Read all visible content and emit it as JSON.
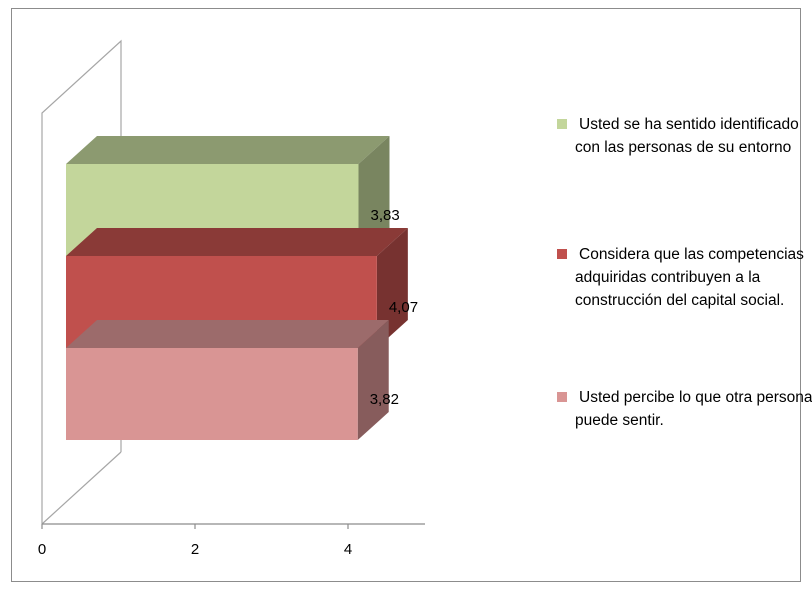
{
  "chart_data": {
    "type": "bar",
    "orientation": "horizontal",
    "style": "3d-stacked-clustered",
    "xlim": [
      0,
      5
    ],
    "x_ticks": [
      "0",
      "2",
      "4"
    ],
    "grid": false,
    "legend_position": "right",
    "series": [
      {
        "name": "Usted se ha sentido identificado con las personas de su entorno",
        "value": 3.83,
        "label": "3,83",
        "color": "#c3d69b"
      },
      {
        "name": "Considera que las competencias adquiridas contribuyen a la construcción del capital social.",
        "value": 4.07,
        "label": "4,07",
        "color": "#c0504d"
      },
      {
        "name": "Usted percibe  lo que otra persona puede sentir.",
        "value": 3.82,
        "label": "3,82",
        "color": "#d99594"
      }
    ]
  }
}
